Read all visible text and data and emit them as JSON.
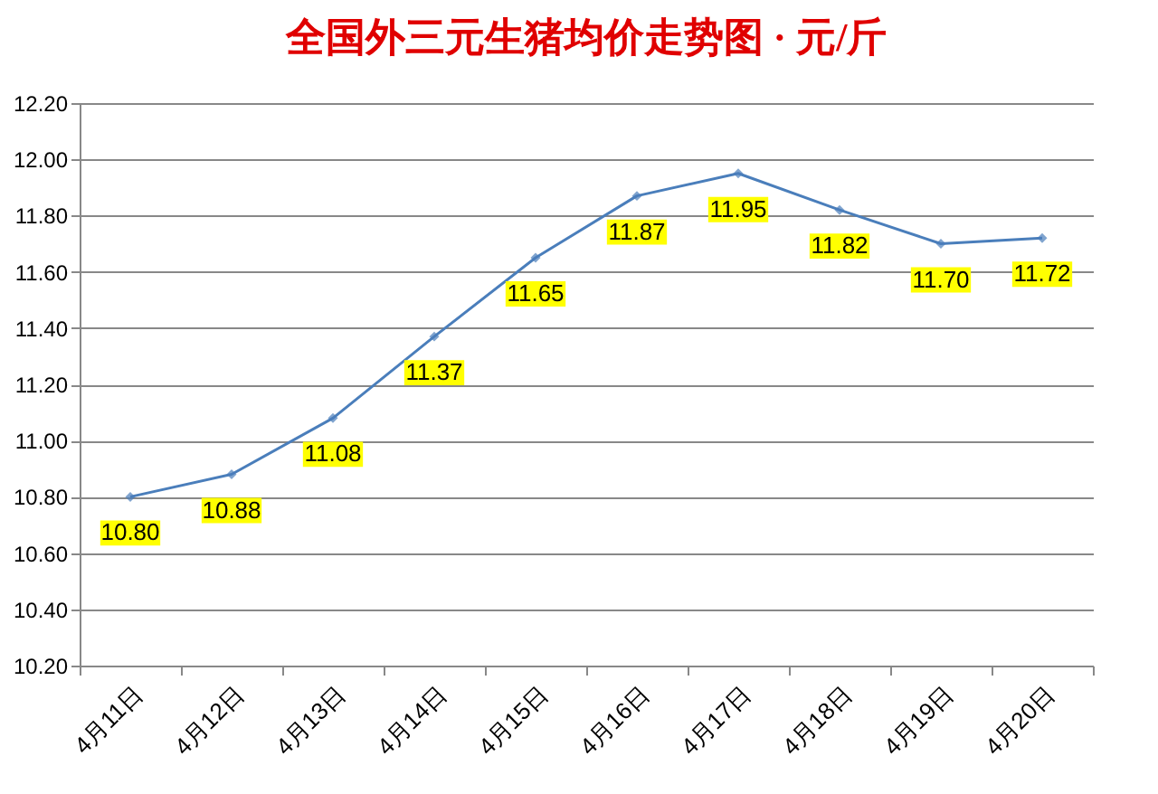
{
  "chart_data": {
    "type": "line",
    "title": "全国外三元生猪均价走势图 · 元/斤",
    "categories": [
      "4月11日",
      "4月12日",
      "4月13日",
      "4月14日",
      "4月15日",
      "4月16日",
      "4月17日",
      "4月18日",
      "4月19日",
      "4月20日"
    ],
    "series": [
      {
        "color": "#4a7ebb",
        "values": [
          10.8,
          10.88,
          11.08,
          11.37,
          11.65,
          11.87,
          11.95,
          11.82,
          11.7,
          11.72
        ],
        "value_labels": [
          "10.80",
          "10.88",
          "11.08",
          "11.37",
          "11.65",
          "11.87",
          "11.95",
          "11.82",
          "11.70",
          "11.72"
        ]
      }
    ],
    "ylim": [
      10.2,
      12.2
    ],
    "yticks": [
      {
        "value": 10.2,
        "label": "10.20"
      },
      {
        "value": 10.4,
        "label": "10.40"
      },
      {
        "value": 10.6,
        "label": "10.60"
      },
      {
        "value": 10.8,
        "label": "10.80"
      },
      {
        "value": 11.0,
        "label": "11.00"
      },
      {
        "value": 11.2,
        "label": "11.20"
      },
      {
        "value": 11.4,
        "label": "11.40"
      },
      {
        "value": 11.6,
        "label": "11.60"
      },
      {
        "value": 11.8,
        "label": "11.80"
      },
      {
        "value": 12.0,
        "label": "12.00"
      },
      {
        "value": 12.2,
        "label": "12.20"
      }
    ],
    "grid": "y",
    "marker": "diamond"
  }
}
